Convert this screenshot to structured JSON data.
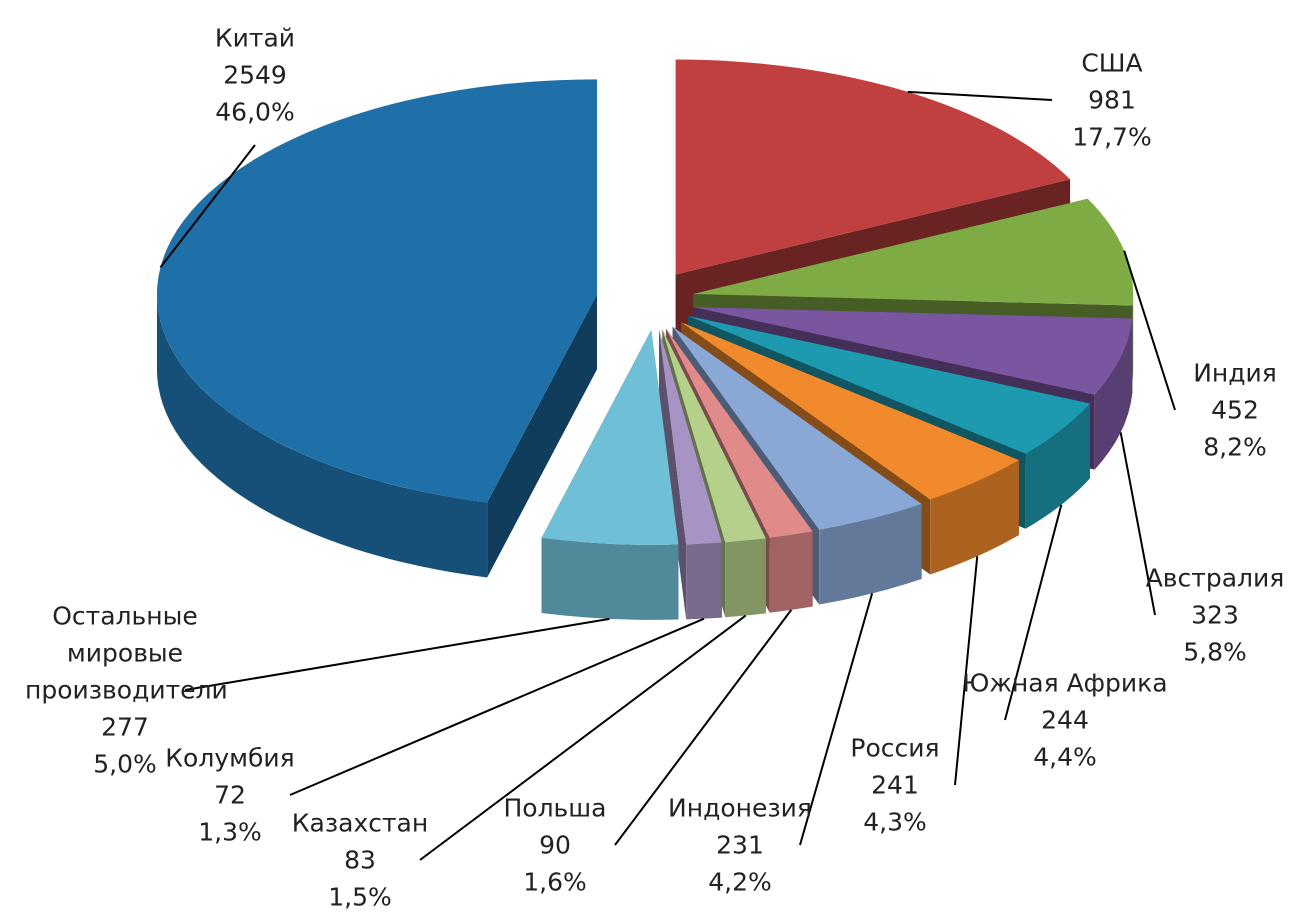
{
  "chart_data": {
    "type": "pie3d",
    "categories": [
      "США",
      "Индия",
      "Австралия",
      "Южная Африка",
      "Россия",
      "Индонезия",
      "Польша",
      "Казахстан",
      "Колумбия",
      "Остальные мировые производители",
      "Китай"
    ],
    "values": [
      981,
      452,
      323,
      244,
      241,
      231,
      90,
      83,
      72,
      277,
      2549
    ],
    "share_labels": [
      "17,7%",
      "8,2%",
      "5,8%",
      "4,4%",
      "4,3%",
      "4,2%",
      "1,6%",
      "1,5%",
      "1,3%",
      "5,0%",
      "46,0%"
    ],
    "colors": [
      "#c0403f",
      "#7fab45",
      "#7b56a0",
      "#1e9ab0",
      "#f08a2c",
      "#8aa8d6",
      "#e08a8a",
      "#b4d08a",
      "#a894c4",
      "#6fc0d6",
      "#1f6fa8"
    ]
  }
}
